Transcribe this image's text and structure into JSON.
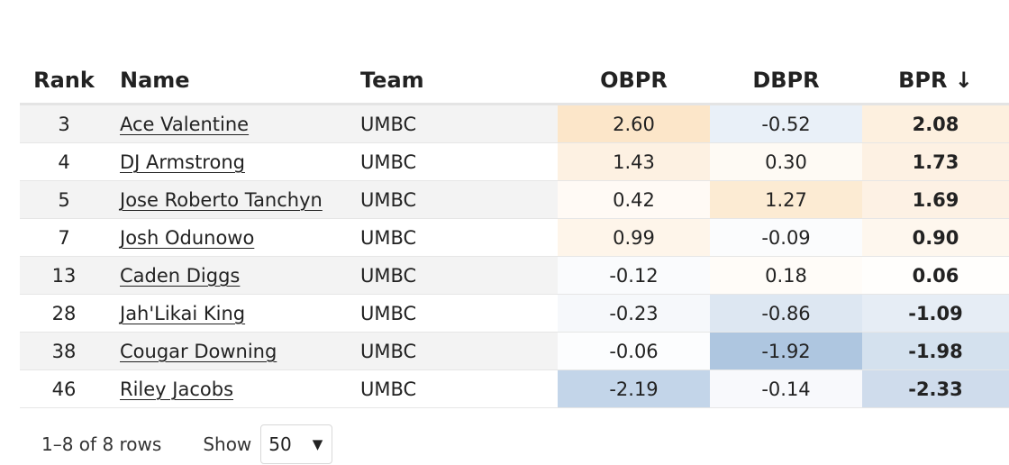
{
  "table": {
    "headers": {
      "rank": "Rank",
      "name": "Name",
      "team": "Team",
      "obpr": "OBPR",
      "dbpr": "DBPR",
      "bpr": "BPR ↓"
    },
    "rows": [
      {
        "rank": "3",
        "name": "Ace Valentine",
        "team": "UMBC",
        "obpr": "2.60",
        "dbpr": "-0.52",
        "bpr": "2.08",
        "obpr_color": "#fce6c9",
        "dbpr_color": "#e9f0f8",
        "bpr_color": "#fdf0df"
      },
      {
        "rank": "4",
        "name": "DJ Armstrong",
        "team": "UMBC",
        "obpr": "1.43",
        "dbpr": "0.30",
        "bpr": "1.73",
        "obpr_color": "#fdf1e2",
        "dbpr_color": "#fefaf4",
        "bpr_color": "#fdf1e3"
      },
      {
        "rank": "5",
        "name": "Jose Roberto Tanchyn",
        "team": "UMBC",
        "obpr": "0.42",
        "dbpr": "1.27",
        "bpr": "1.69",
        "obpr_color": "#fffaf5",
        "dbpr_color": "#fcebd3",
        "bpr_color": "#fdf1e4"
      },
      {
        "rank": "7",
        "name": "Josh Odunowo",
        "team": "UMBC",
        "obpr": "0.99",
        "dbpr": "-0.09",
        "bpr": "0.90",
        "obpr_color": "#fef5ea",
        "dbpr_color": "#fbfcfd",
        "bpr_color": "#fef7ee"
      },
      {
        "rank": "13",
        "name": "Caden Diggs",
        "team": "UMBC",
        "obpr": "-0.12",
        "dbpr": "0.18",
        "bpr": "0.06",
        "obpr_color": "#fafbfd",
        "dbpr_color": "#fffcf8",
        "bpr_color": "#fffefc"
      },
      {
        "rank": "28",
        "name": "Jah'Likai King",
        "team": "UMBC",
        "obpr": "-0.23",
        "dbpr": "-0.86",
        "bpr": "-1.09",
        "obpr_color": "#f6f8fb",
        "dbpr_color": "#dde7f2",
        "bpr_color": "#e6edf5"
      },
      {
        "rank": "38",
        "name": "Cougar Downing",
        "team": "UMBC",
        "obpr": "-0.06",
        "dbpr": "-1.92",
        "bpr": "-1.98",
        "obpr_color": "#fcfdfe",
        "dbpr_color": "#aec6e0",
        "bpr_color": "#d4e1ee"
      },
      {
        "rank": "46",
        "name": "Riley Jacobs",
        "team": "UMBC",
        "obpr": "-2.19",
        "dbpr": "-0.14",
        "bpr": "-2.33",
        "obpr_color": "#c3d5e9",
        "dbpr_color": "#f8f9fc",
        "bpr_color": "#cfdcec"
      }
    ]
  },
  "pagination": {
    "rows_info": "1–8 of 8 rows",
    "show_label": "Show",
    "page_size": "50"
  },
  "icons": {
    "dropdown": "chevron-down-icon"
  }
}
